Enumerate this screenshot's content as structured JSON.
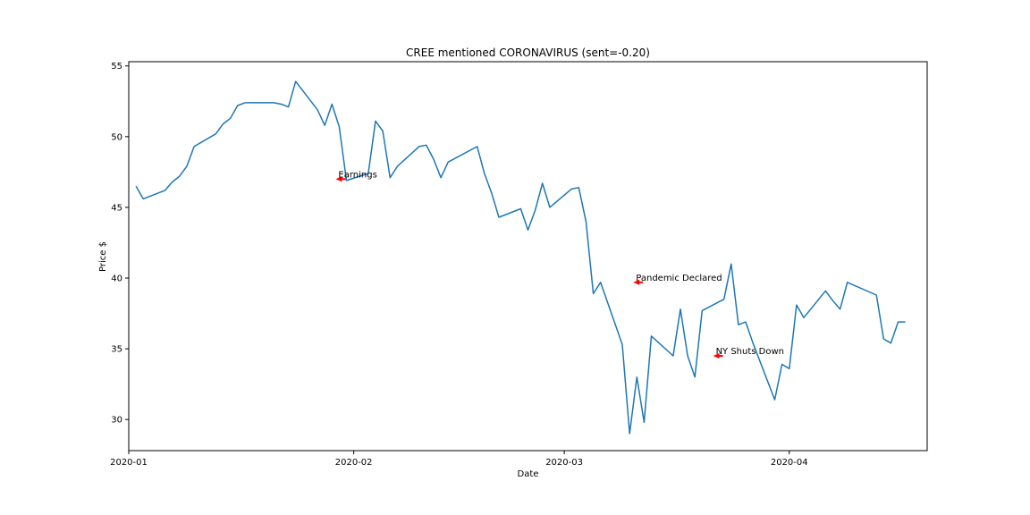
{
  "chart_data": {
    "type": "line",
    "title": "CREE mentioned CORONAVIRUS (sent=-0.20)",
    "xlabel": "Date",
    "ylabel": "Price $",
    "xlim": [
      "2020-01-01",
      "2020-04-20"
    ],
    "ylim": [
      27.8,
      55.3
    ],
    "yticks": [
      30,
      35,
      40,
      45,
      50,
      55
    ],
    "xticks": [
      {
        "date": "2020-01-01",
        "label": "2020-01"
      },
      {
        "date": "2020-02-01",
        "label": "2020-02"
      },
      {
        "date": "2020-03-01",
        "label": "2020-03"
      },
      {
        "date": "2020-04-01",
        "label": "2020-04"
      }
    ],
    "line_color": "#1f77b4",
    "grid": false,
    "series": [
      {
        "x": [
          "2020-01-02",
          "2020-01-03",
          "2020-01-06",
          "2020-01-07",
          "2020-01-08",
          "2020-01-09",
          "2020-01-10",
          "2020-01-13",
          "2020-01-14",
          "2020-01-15",
          "2020-01-16",
          "2020-01-17",
          "2020-01-21",
          "2020-01-22",
          "2020-01-23",
          "2020-01-24",
          "2020-01-27",
          "2020-01-28",
          "2020-01-29",
          "2020-01-30",
          "2020-01-31",
          "2020-02-03",
          "2020-02-04",
          "2020-02-05",
          "2020-02-06",
          "2020-02-07",
          "2020-02-10",
          "2020-02-11",
          "2020-02-12",
          "2020-02-13",
          "2020-02-14",
          "2020-02-18",
          "2020-02-19",
          "2020-02-20",
          "2020-02-21",
          "2020-02-24",
          "2020-02-25",
          "2020-02-26",
          "2020-02-27",
          "2020-02-28",
          "2020-03-02",
          "2020-03-03",
          "2020-03-04",
          "2020-03-05",
          "2020-03-06",
          "2020-03-09",
          "2020-03-10",
          "2020-03-11",
          "2020-03-12",
          "2020-03-13",
          "2020-03-16",
          "2020-03-17",
          "2020-03-18",
          "2020-03-19",
          "2020-03-20",
          "2020-03-23",
          "2020-03-24",
          "2020-03-25",
          "2020-03-26",
          "2020-03-27",
          "2020-03-30",
          "2020-03-31",
          "2020-04-01",
          "2020-04-02",
          "2020-04-03",
          "2020-04-06",
          "2020-04-07",
          "2020-04-08",
          "2020-04-09",
          "2020-04-13",
          "2020-04-14",
          "2020-04-15",
          "2020-04-16",
          "2020-04-17"
        ],
        "y": [
          46.5,
          45.6,
          46.2,
          46.8,
          47.2,
          47.9,
          49.3,
          50.2,
          50.9,
          51.3,
          52.2,
          52.4,
          52.4,
          52.3,
          52.1,
          53.9,
          51.9,
          50.8,
          52.3,
          50.7,
          46.9,
          47.4,
          51.1,
          50.4,
          47.1,
          47.9,
          49.3,
          49.4,
          48.4,
          47.1,
          48.2,
          49.3,
          47.4,
          46.0,
          44.3,
          44.9,
          43.4,
          44.8,
          46.7,
          45.0,
          46.3,
          46.4,
          44.0,
          38.9,
          39.7,
          35.3,
          29.0,
          33.0,
          29.8,
          35.9,
          34.5,
          37.8,
          34.5,
          33.0,
          37.7,
          38.5,
          41.0,
          36.7,
          36.9,
          35.4,
          31.4,
          33.9,
          33.6,
          38.1,
          37.2,
          39.1,
          38.4,
          37.8,
          39.7,
          38.8,
          35.7,
          35.4,
          36.9,
          36.9
        ]
      }
    ],
    "annotations": [
      {
        "text": "Earnings",
        "date": "2020-01-30",
        "y": 47.0
      },
      {
        "text": "Pandemic Declared",
        "date": "2020-03-11",
        "y": 39.7
      },
      {
        "text": "NY Shuts Down",
        "date": "2020-03-22",
        "y": 34.5
      }
    ]
  }
}
